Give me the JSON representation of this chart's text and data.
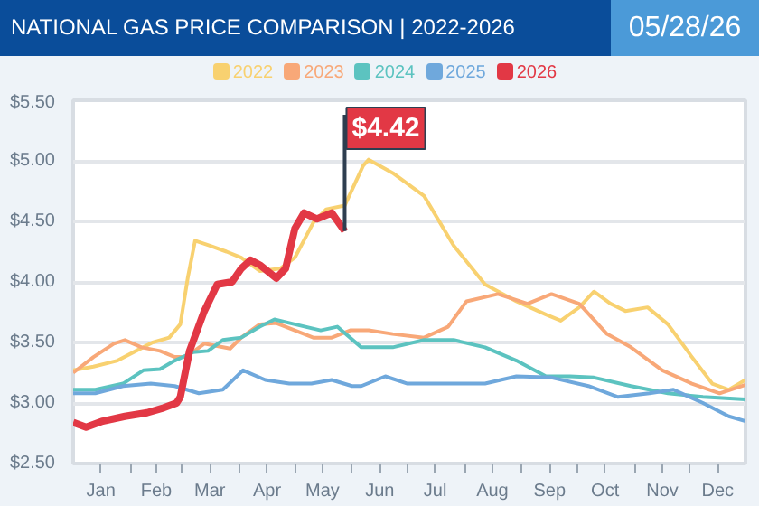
{
  "chart_data": {
    "type": "line",
    "title": "NATIONAL GAS PRICE COMPARISON | 2022-2026",
    "subtitle": "05/28/26",
    "xlim": [
      "--01-01",
      "--12-31"
    ],
    "xticks": [
      {
        "value": "--01-16",
        "label": "Jan"
      },
      {
        "value": "--02-15",
        "label": "Feb"
      },
      {
        "value": "--03-16",
        "label": "Mar"
      },
      {
        "value": "--04-16",
        "label": "Apr"
      },
      {
        "value": "--05-16",
        "label": "May"
      },
      {
        "value": "--06-16",
        "label": "Jun"
      },
      {
        "value": "--07-16",
        "label": "Jul"
      },
      {
        "value": "--08-16",
        "label": "Aug"
      },
      {
        "value": "--09-16",
        "label": "Sep"
      },
      {
        "value": "--10-16",
        "label": "Oct"
      },
      {
        "value": "--11-16",
        "label": "Nov"
      },
      {
        "value": "--12-16",
        "label": "Dec"
      },
      {
        "value": "--02-01",
        "label": null
      },
      {
        "value": "--03-01",
        "label": null
      },
      {
        "value": "--04-01",
        "label": null
      },
      {
        "value": "--05-01",
        "label": null
      },
      {
        "value": "--06-01",
        "label": null
      },
      {
        "value": "--07-01",
        "label": null
      },
      {
        "value": "--08-01",
        "label": null
      },
      {
        "value": "--09-01",
        "label": null
      },
      {
        "value": "--10-01",
        "label": null
      },
      {
        "value": "--11-01",
        "label": null
      },
      {
        "value": "--12-01",
        "label": null
      }
    ],
    "ylim": [
      2.5,
      5.5
    ],
    "yticks": [
      {
        "value": 2.5,
        "label": "$2.50"
      },
      {
        "value": 3.0,
        "label": "$3.00"
      },
      {
        "value": 3.5,
        "label": "$3.50"
      },
      {
        "value": 4.0,
        "label": "$4.00"
      },
      {
        "value": 4.5,
        "label": "$4.50"
      },
      {
        "value": 5.0,
        "label": "$5.00"
      },
      {
        "value": 5.5,
        "label": "$5.50"
      }
    ],
    "grid": "y",
    "legend": "top",
    "line_style": "solid",
    "series": [
      {
        "name": "2022",
        "color": "#f8d170",
        "x": [
          "--01-01",
          "--01-12",
          "--01-25",
          "--02-04",
          "--02-13",
          "--02-22",
          "--02-28",
          "--03-04",
          "--03-08",
          "--03-16",
          "--03-25",
          "--04-02",
          "--04-12",
          "--04-23",
          "--05-01",
          "--05-11",
          "--05-18",
          "--05-28",
          "--06-07",
          "--06-10",
          "--06-23",
          "--07-10",
          "--07-26",
          "--08-12",
          "--08-29",
          "--09-14",
          "--09-22",
          "--10-02",
          "--10-10",
          "--10-19",
          "--10-27",
          "--11-08",
          "--11-19",
          "--12-02",
          "--12-13",
          "--12-22",
          "--12-31"
        ],
        "values": [
          3.27,
          3.3,
          3.35,
          3.43,
          3.5,
          3.54,
          3.65,
          4.03,
          4.34,
          4.3,
          4.25,
          4.2,
          4.09,
          4.11,
          4.2,
          4.49,
          4.6,
          4.63,
          4.96,
          5.01,
          4.9,
          4.71,
          4.3,
          3.98,
          3.84,
          3.73,
          3.68,
          3.79,
          3.92,
          3.82,
          3.76,
          3.79,
          3.65,
          3.38,
          3.16,
          3.11,
          3.19
        ]
      },
      {
        "name": "2023",
        "color": "#f8a878",
        "x": [
          "--01-01",
          "--01-12",
          "--01-23",
          "--01-29",
          "--02-07",
          "--02-17",
          "--02-25",
          "--03-03",
          "--03-13",
          "--03-27",
          "--04-02",
          "--04-12",
          "--04-21",
          "--05-01",
          "--05-11",
          "--05-21",
          "--05-31",
          "--06-10",
          "--06-23",
          "--07-10",
          "--07-23",
          "--08-02",
          "--08-19",
          "--09-04",
          "--09-17",
          "--10-02",
          "--10-17",
          "--10-30",
          "--11-16",
          "--12-02",
          "--12-17",
          "--12-31"
        ],
        "values": [
          3.25,
          3.38,
          3.49,
          3.52,
          3.46,
          3.43,
          3.38,
          3.38,
          3.49,
          3.45,
          3.54,
          3.65,
          3.66,
          3.6,
          3.54,
          3.54,
          3.6,
          3.6,
          3.57,
          3.54,
          3.63,
          3.84,
          3.9,
          3.82,
          3.9,
          3.82,
          3.57,
          3.46,
          3.27,
          3.16,
          3.08,
          3.15
        ]
      },
      {
        "name": "2024",
        "color": "#5cc3c0",
        "x": [
          "--01-01",
          "--01-13",
          "--01-28",
          "--02-08",
          "--02-17",
          "--02-25",
          "--03-07",
          "--03-15",
          "--03-23",
          "--04-02",
          "--04-12",
          "--04-20",
          "--05-01",
          "--05-15",
          "--05-24",
          "--06-06",
          "--06-23",
          "--07-10",
          "--07-26",
          "--08-12",
          "--08-29",
          "--09-14",
          "--09-27",
          "--10-10",
          "--10-30",
          "--11-19",
          "--12-08",
          "--12-31"
        ],
        "values": [
          3.11,
          3.11,
          3.16,
          3.27,
          3.28,
          3.35,
          3.42,
          3.43,
          3.52,
          3.54,
          3.63,
          3.69,
          3.65,
          3.6,
          3.63,
          3.46,
          3.46,
          3.52,
          3.52,
          3.46,
          3.35,
          3.22,
          3.22,
          3.21,
          3.14,
          3.08,
          3.05,
          3.03
        ]
      },
      {
        "name": "2025",
        "color": "#6fa8dc",
        "x": [
          "--01-01",
          "--01-13",
          "--01-28",
          "--02-12",
          "--02-25",
          "--03-10",
          "--03-23",
          "--04-03",
          "--04-15",
          "--04-28",
          "--05-10",
          "--05-21",
          "--06-01",
          "--06-06",
          "--06-19",
          "--07-01",
          "--07-26",
          "--08-12",
          "--08-29",
          "--09-17",
          "--10-07",
          "--10-23",
          "--11-09",
          "--11-22",
          "--12-08",
          "--12-22",
          "--12-31"
        ],
        "values": [
          3.08,
          3.08,
          3.14,
          3.16,
          3.14,
          3.08,
          3.11,
          3.27,
          3.19,
          3.16,
          3.16,
          3.19,
          3.14,
          3.14,
          3.22,
          3.16,
          3.16,
          3.16,
          3.22,
          3.21,
          3.14,
          3.05,
          3.08,
          3.11,
          3.0,
          2.89,
          2.85
        ]
      },
      {
        "name": "2026",
        "color": "#e23845",
        "x": [
          "--01-01",
          "--01-08",
          "--01-17",
          "--01-29",
          "--02-10",
          "--02-19",
          "--02-26",
          "--02-28",
          "--03-05",
          "--03-13",
          "--03-20",
          "--03-28",
          "--04-02",
          "--04-07",
          "--04-12",
          "--04-21",
          "--04-26",
          "--05-01",
          "--05-06",
          "--05-13",
          "--05-21",
          "--05-28"
        ],
        "values": [
          2.84,
          2.8,
          2.85,
          2.89,
          2.92,
          2.96,
          3.0,
          3.05,
          3.43,
          3.76,
          3.98,
          4.0,
          4.11,
          4.18,
          4.14,
          4.03,
          4.11,
          4.44,
          4.57,
          4.52,
          4.57,
          4.42
        ]
      }
    ],
    "annotations": [
      {
        "text": "$4.42",
        "x": "--05-28",
        "y": 4.42
      }
    ]
  }
}
